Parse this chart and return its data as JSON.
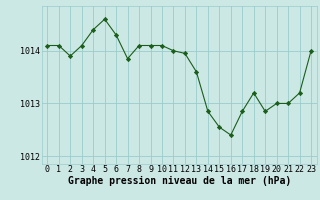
{
  "x": [
    0,
    1,
    2,
    3,
    4,
    5,
    6,
    7,
    8,
    9,
    10,
    11,
    12,
    13,
    14,
    15,
    16,
    17,
    18,
    19,
    20,
    21,
    22,
    23
  ],
  "y": [
    1014.1,
    1014.1,
    1013.9,
    1014.1,
    1014.4,
    1014.6,
    1014.3,
    1013.85,
    1014.1,
    1014.1,
    1014.1,
    1014.0,
    1013.95,
    1013.6,
    1012.85,
    1012.55,
    1012.4,
    1012.85,
    1013.2,
    1012.85,
    1013.0,
    1013.0,
    1013.2,
    1014.0
  ],
  "line_color": "#1a5e1a",
  "marker": "D",
  "marker_size": 2.2,
  "bg_color": "#cce8e4",
  "grid_color": "#99cccc",
  "ylabel_ticks": [
    1012,
    1013,
    1014
  ],
  "xlabel_label": "Graphe pression niveau de la mer (hPa)",
  "xlabel_fontsize": 7,
  "tick_fontsize": 6,
  "ylim": [
    1011.85,
    1014.85
  ],
  "xlim": [
    -0.5,
    23.5
  ]
}
